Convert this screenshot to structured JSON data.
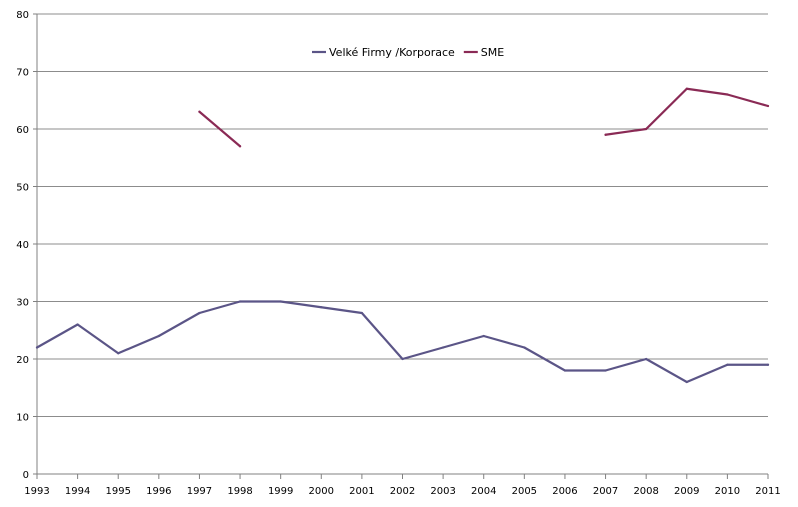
{
  "chart_data": {
    "type": "line",
    "x": [
      1993,
      1994,
      1995,
      1996,
      1997,
      1998,
      1999,
      2000,
      2001,
      2002,
      2003,
      2004,
      2005,
      2006,
      2007,
      2008,
      2009,
      2010,
      2011
    ],
    "x_tick_labels": [
      "1993",
      "1994",
      "1995",
      "1996",
      "1997",
      "1998",
      "1999",
      "2000",
      "2001",
      "2002",
      "2003",
      "2004",
      "2005",
      "2006",
      "2007",
      "2008",
      "2009",
      "2010",
      "2011"
    ],
    "ylim": [
      0,
      80
    ],
    "y_ticks": [
      0,
      10,
      20,
      30,
      40,
      50,
      60,
      70,
      80
    ],
    "grid": "horizontal",
    "legend_position": "top-center",
    "series": [
      {
        "name": "Velké Firmy /Korporace",
        "color": "#5b5587",
        "values": [
          22,
          26,
          21,
          24,
          28,
          30,
          30,
          29,
          28,
          20,
          22,
          24,
          22,
          18,
          18,
          20,
          16,
          19,
          19
        ]
      },
      {
        "name": "SME",
        "color": "#8a2a55",
        "values": [
          null,
          null,
          null,
          null,
          63,
          57,
          null,
          null,
          null,
          null,
          null,
          null,
          null,
          null,
          59,
          60,
          67,
          66,
          64
        ]
      }
    ],
    "title": "",
    "xlabel": "",
    "ylabel": ""
  }
}
